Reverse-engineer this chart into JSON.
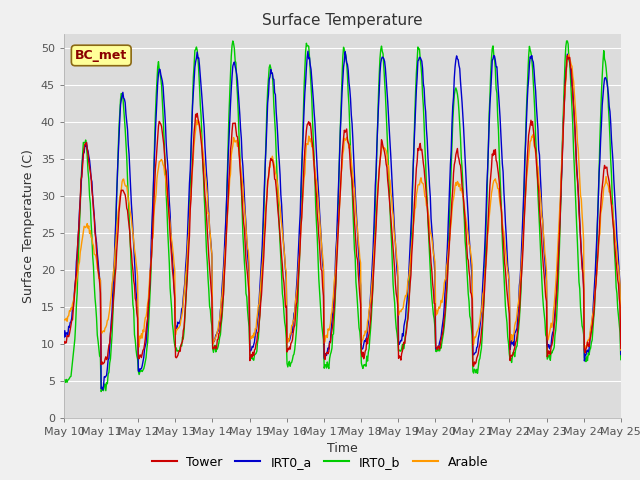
{
  "title": "Surface Temperature",
  "xlabel": "Time",
  "ylabel": "Surface Temperature (C)",
  "ylim": [
    0,
    52
  ],
  "yticks": [
    0,
    5,
    10,
    15,
    20,
    25,
    30,
    35,
    40,
    45,
    50
  ],
  "xtick_labels": [
    "May 10",
    "May 11",
    "May 12",
    "May 13",
    "May 14",
    "May 15",
    "May 16",
    "May 17",
    "May 18",
    "May 19",
    "May 20",
    "May 21",
    "May 22",
    "May 23",
    "May 24",
    "May 25"
  ],
  "legend_label": "BC_met",
  "series_names": [
    "Tower",
    "IRT0_a",
    "IRT0_b",
    "Arable"
  ],
  "series_colors": [
    "#cc0000",
    "#0000cc",
    "#00cc00",
    "#ff9900"
  ],
  "plot_bg_color": "#dcdcdc",
  "fig_bg_color": "#f0f0f0",
  "grid_color": "#ffffff",
  "title_fontsize": 11,
  "axis_label_fontsize": 9,
  "tick_fontsize": 8,
  "legend_fontsize": 9,
  "bc_met_fontsize": 9,
  "linewidth": 1.0,
  "n_days": 15,
  "pts_per_day": 48
}
